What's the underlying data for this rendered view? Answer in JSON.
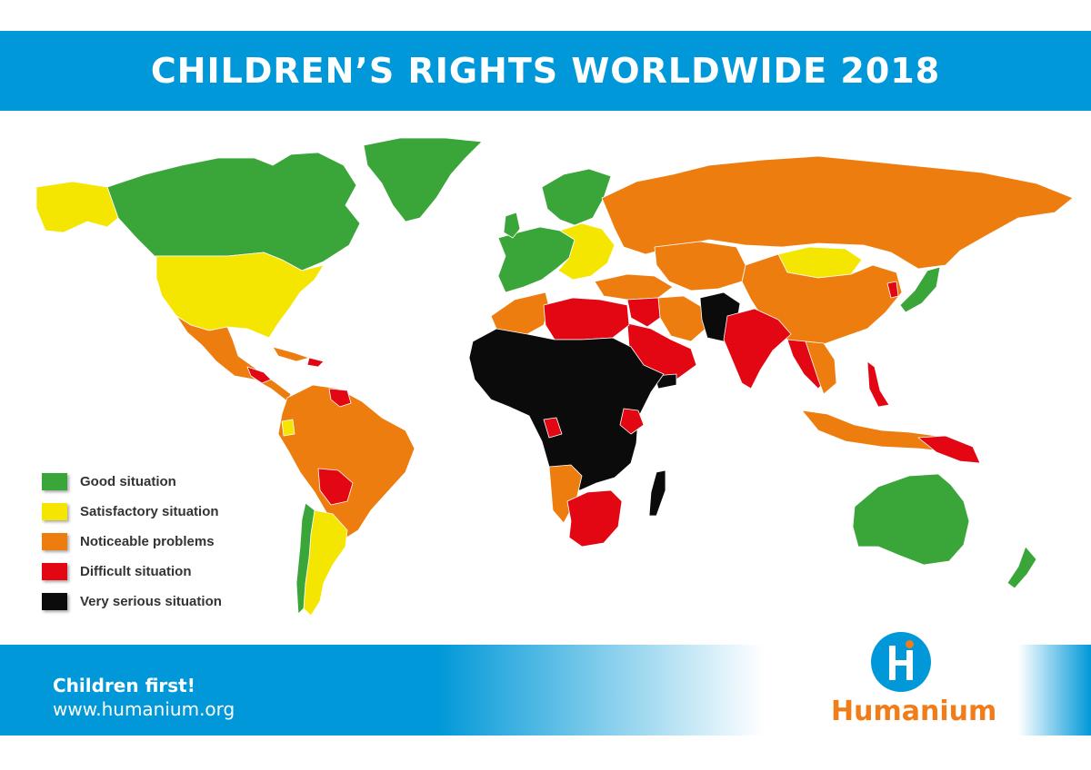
{
  "header": {
    "title": "CHILDREN’S RIGHTS WORLDWIDE 2018"
  },
  "colors": {
    "brand_blue": "#0098d8",
    "good": "#3aa538",
    "satisfactory": "#f4e600",
    "noticeable": "#ee7d0f",
    "difficult": "#e30613",
    "very_serious": "#0b0b0b",
    "logo_orange": "#f07d1a"
  },
  "legend": {
    "items": [
      {
        "label": "Good situation",
        "color": "#3aa538"
      },
      {
        "label": "Satisfactory situation",
        "color": "#f4e600"
      },
      {
        "label": "Noticeable problems",
        "color": "#ee7d0f"
      },
      {
        "label": "Difficult situation",
        "color": "#e30613"
      },
      {
        "label": "Very serious situation",
        "color": "#0b0b0b"
      }
    ]
  },
  "footer": {
    "slogan": "Children first!",
    "url": "www.humanium.org"
  },
  "logo": {
    "name": "Humanium",
    "icon": "humanium-h-icon"
  }
}
